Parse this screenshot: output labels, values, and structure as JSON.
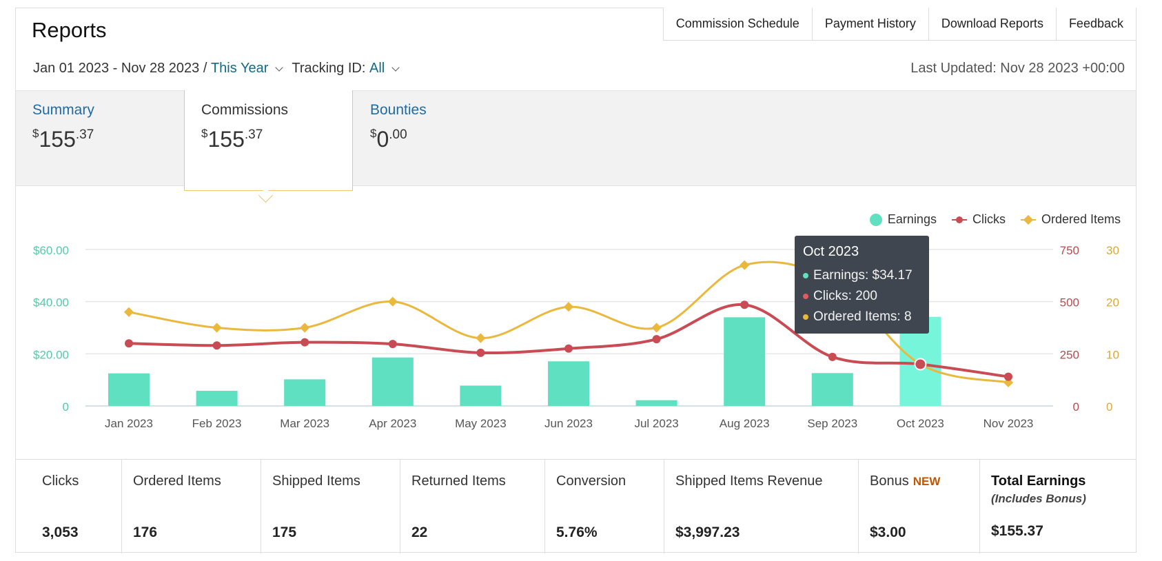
{
  "header": {
    "title": "Reports",
    "tabs": [
      "Commission Schedule",
      "Payment History",
      "Download Reports",
      "Feedback"
    ],
    "date_range": "Jan 01 2023 - Nov 28 2023 /",
    "date_preset": "This Year",
    "tracking_label": "Tracking ID:",
    "tracking_value": "All",
    "last_updated": "Last Updated: Nov 28 2023 +00:00"
  },
  "summary_tabs": [
    {
      "label": "Summary",
      "currency": "$",
      "whole": "155",
      "cents": ".37"
    },
    {
      "label": "Commissions",
      "currency": "$",
      "whole": "155",
      "cents": ".37"
    },
    {
      "label": "Bounties",
      "currency": "$",
      "whole": "0",
      "cents": ".00"
    }
  ],
  "legend": {
    "earnings": "Earnings",
    "clicks": "Clicks",
    "ordered": "Ordered Items"
  },
  "colors": {
    "earnings": "#5ee0c1",
    "earnings_hover": "#76f5da",
    "clicks": "#c94b53",
    "ordered": "#eab83d",
    "link": "#1f6aa5"
  },
  "chart_data": {
    "type": "bar",
    "categories": [
      "Jan 2023",
      "Feb 2023",
      "Mar 2023",
      "Apr 2023",
      "May 2023",
      "Jun 2023",
      "Jul 2023",
      "Aug 2023",
      "Sep 2023",
      "Oct 2023",
      "Nov 2023"
    ],
    "series": [
      {
        "name": "Earnings",
        "type": "bar",
        "axis": "left",
        "values": [
          12.5,
          5.8,
          10.2,
          18.6,
          7.8,
          17.1,
          2.2,
          34.0,
          12.6,
          34.17,
          0
        ]
      },
      {
        "name": "Clicks",
        "type": "line",
        "axis": "right1",
        "values": [
          300,
          290,
          305,
          297,
          255,
          275,
          320,
          485,
          235,
          200,
          140
        ]
      },
      {
        "name": "Ordered Items",
        "type": "line",
        "axis": "right2",
        "values": [
          18,
          15,
          15,
          20,
          13,
          19,
          15,
          27,
          24,
          8,
          4.5
        ]
      }
    ],
    "axes": {
      "left": {
        "ticks": [
          "0",
          "$20.00",
          "$40.00",
          "$60.00"
        ],
        "ylim": [
          0,
          60
        ]
      },
      "right1": {
        "ticks": [
          "0",
          "250",
          "500",
          "750"
        ],
        "ylim": [
          0,
          750
        ]
      },
      "right2": {
        "ticks": [
          "0",
          "10",
          "20",
          "30"
        ],
        "ylim": [
          0,
          30
        ]
      }
    },
    "grid": true,
    "legend_position": "top-right",
    "highlight_index": 9
  },
  "tooltip": {
    "title": "Oct 2023",
    "earnings": "Earnings: $34.17",
    "clicks": "Clicks: 200",
    "ordered": "Ordered Items: 8"
  },
  "stats": [
    {
      "name": "Clicks",
      "value": "3,053"
    },
    {
      "name": "Ordered Items",
      "value": "176"
    },
    {
      "name": "Shipped Items",
      "value": "175"
    },
    {
      "name": "Returned Items",
      "value": "22"
    },
    {
      "name": "Conversion",
      "value": "5.76%"
    },
    {
      "name": "Shipped Items Revenue",
      "value": "$3,997.23"
    },
    {
      "name": "Bonus",
      "badge": "NEW",
      "value": "$3.00"
    },
    {
      "name": "Total Earnings",
      "sub": "(Includes Bonus)",
      "value": "$155.37"
    }
  ]
}
